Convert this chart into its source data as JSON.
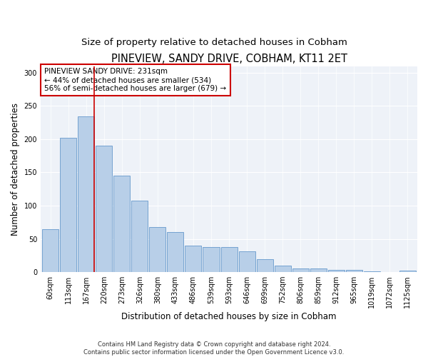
{
  "title": "PINEVIEW, SANDY DRIVE, COBHAM, KT11 2ET",
  "subtitle": "Size of property relative to detached houses in Cobham",
  "xlabel": "Distribution of detached houses by size in Cobham",
  "ylabel": "Number of detached properties",
  "categories": [
    "60sqm",
    "113sqm",
    "167sqm",
    "220sqm",
    "273sqm",
    "326sqm",
    "380sqm",
    "433sqm",
    "486sqm",
    "539sqm",
    "593sqm",
    "646sqm",
    "699sqm",
    "752sqm",
    "806sqm",
    "859sqm",
    "912sqm",
    "965sqm",
    "1019sqm",
    "1072sqm",
    "1125sqm"
  ],
  "values": [
    65,
    202,
    234,
    190,
    145,
    108,
    68,
    60,
    40,
    38,
    38,
    31,
    19,
    10,
    5,
    5,
    3,
    3,
    1,
    0,
    2
  ],
  "bar_color": "#b8cfe8",
  "bar_edge_color": "#6699cc",
  "vline_color": "#cc0000",
  "vline_x_index": 2,
  "annotation_text": "PINEVIEW SANDY DRIVE: 231sqm\n← 44% of detached houses are smaller (534)\n56% of semi-detached houses are larger (679) →",
  "annotation_box_color": "#ffffff",
  "annotation_box_edge": "#cc0000",
  "ylim": [
    0,
    310
  ],
  "yticks": [
    0,
    50,
    100,
    150,
    200,
    250,
    300
  ],
  "background_color": "#eef2f8",
  "footer_text": "Contains HM Land Registry data © Crown copyright and database right 2024.\nContains public sector information licensed under the Open Government Licence v3.0.",
  "title_fontsize": 10.5,
  "subtitle_fontsize": 9.5,
  "xlabel_fontsize": 8.5,
  "ylabel_fontsize": 8.5,
  "tick_fontsize": 7,
  "annotation_fontsize": 7.5,
  "footer_fontsize": 6
}
